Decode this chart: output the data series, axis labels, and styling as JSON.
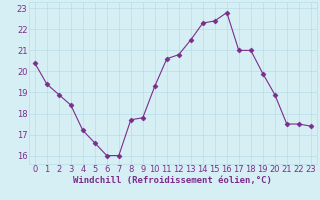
{
  "x": [
    0,
    1,
    2,
    3,
    4,
    5,
    6,
    7,
    8,
    9,
    10,
    11,
    12,
    13,
    14,
    15,
    16,
    17,
    18,
    19,
    20,
    21,
    22,
    23
  ],
  "y": [
    20.4,
    19.4,
    18.9,
    18.4,
    17.2,
    16.6,
    16.0,
    16.0,
    17.7,
    17.8,
    19.3,
    20.6,
    20.8,
    21.5,
    22.3,
    22.4,
    22.8,
    21.0,
    21.0,
    19.9,
    18.9,
    17.5,
    17.5,
    17.4
  ],
  "line_color": "#7b2d8b",
  "marker": "D",
  "marker_size": 2.5,
  "bg_color": "#d6eff5",
  "grid_color": "#b8dde6",
  "xlabel": "Windchill (Refroidissement éolien,°C)",
  "xlabel_color": "#7b2d8b",
  "xlabel_fontsize": 6.5,
  "yticks": [
    16,
    17,
    18,
    19,
    20,
    21,
    22,
    23
  ],
  "xticks": [
    0,
    1,
    2,
    3,
    4,
    5,
    6,
    7,
    8,
    9,
    10,
    11,
    12,
    13,
    14,
    15,
    16,
    17,
    18,
    19,
    20,
    21,
    22,
    23
  ],
  "ylim": [
    15.6,
    23.3
  ],
  "xlim": [
    -0.5,
    23.5
  ],
  "tick_fontsize": 6,
  "tick_color": "#7b2d8b"
}
